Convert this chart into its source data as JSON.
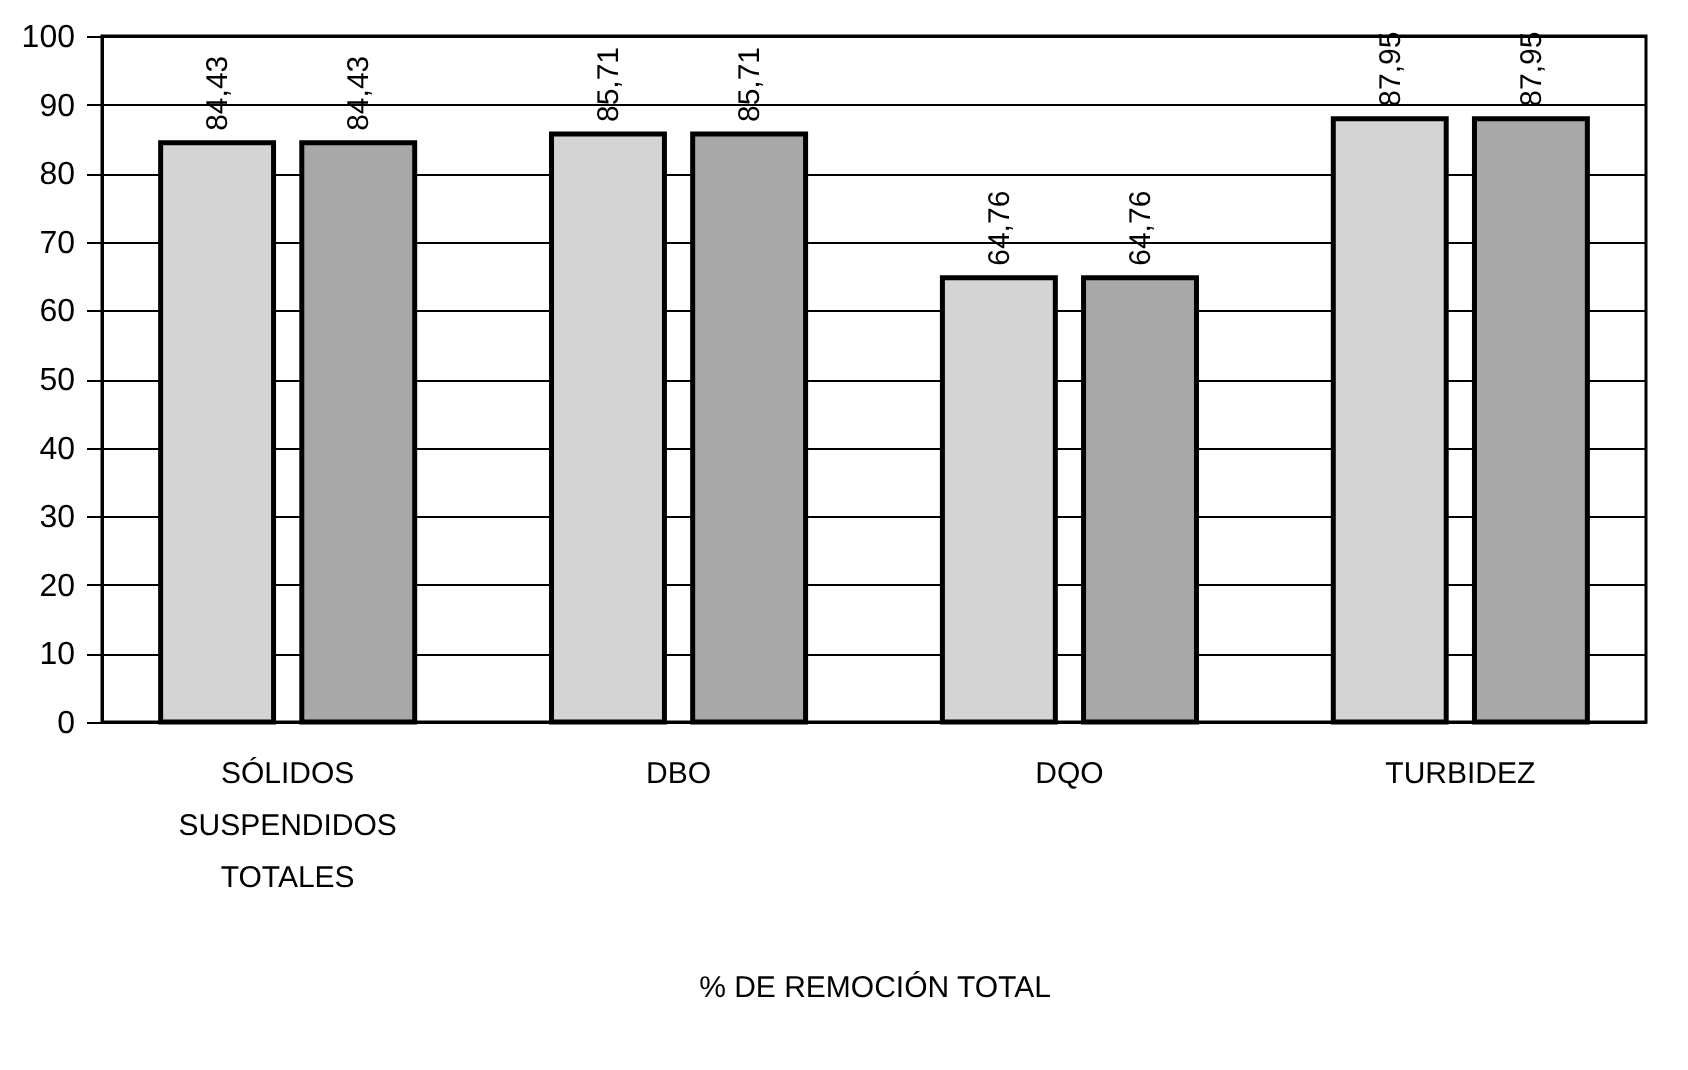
{
  "chart_data": {
    "type": "bar",
    "xlabel": "% DE REMOCIÓN TOTAL",
    "categories": [
      "SÓLIDOS SUSPENDIDOS TOTALES",
      "DBO",
      "DQO",
      "TURBIDEZ"
    ],
    "series": [
      {
        "color": "#d4d4d4",
        "values": [
          84.43,
          85.71,
          64.76,
          87.95
        ],
        "value_labels": [
          "84,43",
          "85,71",
          "64,76",
          "87,95"
        ]
      },
      {
        "color": "#a8a8a8",
        "values": [
          84.43,
          85.71,
          64.76,
          87.95
        ],
        "value_labels": [
          "84,43",
          "85,71",
          "64,76",
          "87,95"
        ]
      }
    ],
    "ylim": [
      0,
      100
    ],
    "yticks": [
      0,
      10,
      20,
      30,
      40,
      50,
      60,
      70,
      80,
      90,
      100
    ],
    "grid": "y",
    "legend": false
  }
}
